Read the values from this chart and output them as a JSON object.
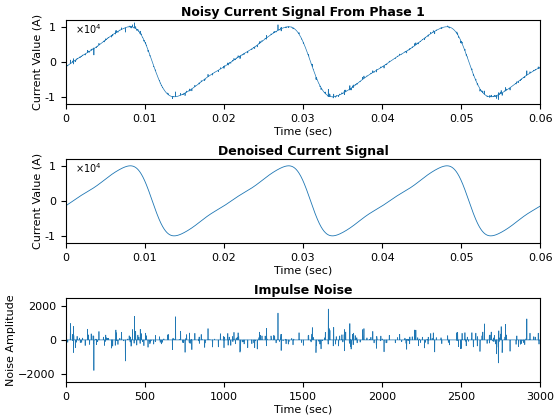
{
  "title1": "Noisy Current Signal From Phase 1",
  "title2": "Denoised Current Signal",
  "title3": "Impulse Noise",
  "ylabel1": "Current Value (A)",
  "ylabel2": "Current Value (A)",
  "ylabel3": "Noise Amplitude",
  "xlabel1": "Time (sec)",
  "xlabel2": "Time (sec)",
  "xlabel3": "Time (sec)",
  "xlim1": [
    0,
    0.06
  ],
  "xlim2": [
    0,
    0.06
  ],
  "xlim3": [
    0,
    3000
  ],
  "ylim1": [
    -12000,
    12000
  ],
  "ylim2": [
    -12000,
    12000
  ],
  "ylim3": [
    -2500,
    2500
  ],
  "yticks1": [
    -10000,
    0,
    10000
  ],
  "yticks2": [
    -10000,
    0,
    10000
  ],
  "yticks3": [
    -2000,
    0,
    2000
  ],
  "xticks1": [
    0,
    0.01,
    0.02,
    0.03,
    0.04,
    0.05,
    0.06
  ],
  "xticks2": [
    0,
    0.01,
    0.02,
    0.03,
    0.04,
    0.05,
    0.06
  ],
  "xticks3": [
    0,
    500,
    1000,
    1500,
    2000,
    2500,
    3000
  ],
  "line_color": "#1f77b4",
  "bg_color": "#ffffff",
  "fs": 50000,
  "freq": 50,
  "noise_n": 3000,
  "title_fontsize": 9,
  "label_fontsize": 8,
  "tick_fontsize": 8
}
